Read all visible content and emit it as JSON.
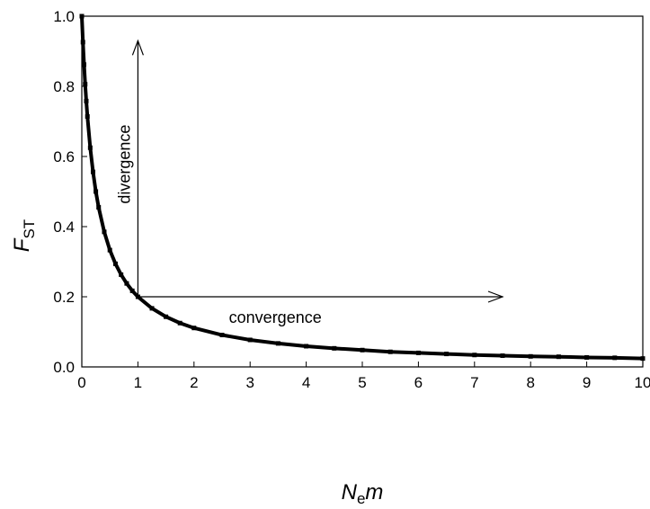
{
  "chart_data": {
    "type": "line",
    "title": "",
    "xlabel": {
      "main": "N",
      "sub": "e",
      "tail": "m"
    },
    "ylabel": {
      "main": "F",
      "sub": "ST"
    },
    "xlim": [
      0,
      10
    ],
    "ylim": [
      0,
      1
    ],
    "xticks": [
      "0",
      "1",
      "2",
      "3",
      "4",
      "5",
      "6",
      "7",
      "8",
      "9",
      "10"
    ],
    "yticks": [
      "0.0",
      "0.2",
      "0.4",
      "0.6",
      "0.8",
      "1.0"
    ],
    "grid": false,
    "legend": "none",
    "series": [
      {
        "formula": "FST = 1/(1+4*Nem)",
        "x": [
          0,
          0.02,
          0.04,
          0.06,
          0.08,
          0.1,
          0.15,
          0.2,
          0.25,
          0.3,
          0.4,
          0.5,
          0.6,
          0.7,
          0.8,
          0.9,
          1.0,
          1.25,
          1.5,
          1.75,
          2.0,
          2.5,
          3.0,
          3.5,
          4.0,
          4.5,
          5.0,
          5.5,
          6.0,
          6.5,
          7.0,
          7.5,
          8.0,
          8.5,
          9.0,
          9.5,
          10.0
        ],
        "y": [
          1.0,
          0.926,
          0.862,
          0.806,
          0.758,
          0.714,
          0.625,
          0.556,
          0.5,
          0.455,
          0.385,
          0.333,
          0.294,
          0.263,
          0.238,
          0.217,
          0.2,
          0.167,
          0.143,
          0.125,
          0.111,
          0.091,
          0.077,
          0.067,
          0.059,
          0.053,
          0.048,
          0.043,
          0.04,
          0.037,
          0.034,
          0.032,
          0.03,
          0.029,
          0.027,
          0.026,
          0.024
        ],
        "color": "#000000",
        "marker": "square"
      }
    ],
    "annotations": [
      {
        "text": "divergence",
        "arrow_from": [
          1,
          0.2
        ],
        "arrow_to": [
          1,
          0.93
        ],
        "orientation": "vertical"
      },
      {
        "text": "convergence",
        "arrow_from": [
          1,
          0.2
        ],
        "arrow_to": [
          7.5,
          0.2
        ],
        "orientation": "horizontal"
      }
    ]
  }
}
